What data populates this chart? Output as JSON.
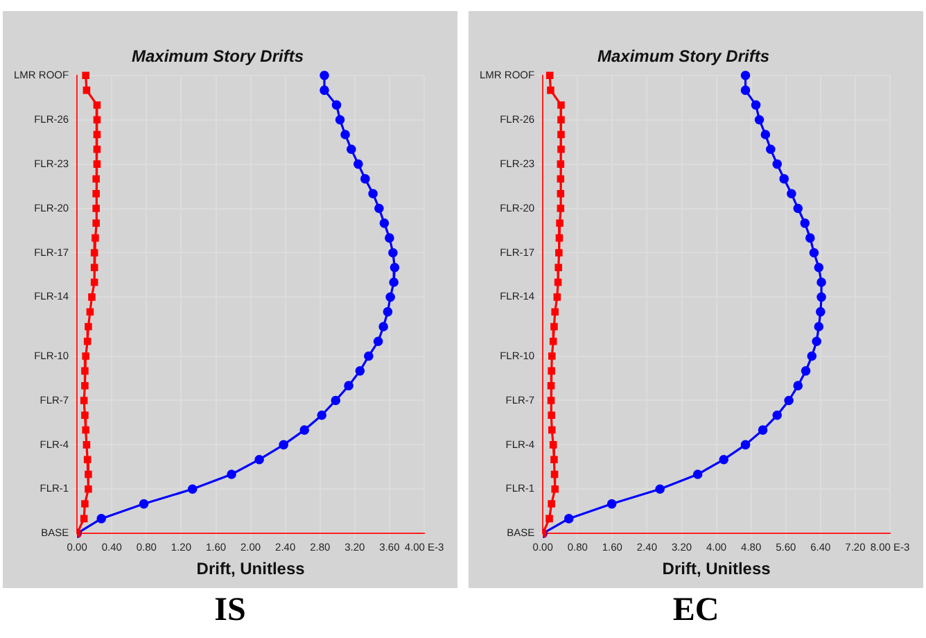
{
  "chart_data": [
    {
      "type": "line",
      "title": "Maximum Story Drifts",
      "xlabel": "Drift, Unitless",
      "annotations": [
        "IS"
      ],
      "orientation": "horizontal",
      "categories": [
        "LMR ROOF",
        null,
        null,
        "FLR-26",
        null,
        null,
        "FLR-23",
        null,
        null,
        "FLR-20",
        null,
        null,
        "FLR-17",
        null,
        null,
        "FLR-14",
        null,
        null,
        null,
        "FLR-10",
        null,
        null,
        "FLR-7",
        null,
        null,
        "FLR-4",
        null,
        null,
        "FLR-1",
        null,
        null,
        "BASE"
      ],
      "xlim": [
        0,
        4
      ],
      "xticks": [
        {
          "value": 0,
          "label": "0.00"
        },
        {
          "value": 0.4,
          "label": "0.40"
        },
        {
          "value": 0.8,
          "label": "0.80"
        },
        {
          "value": 1.2,
          "label": "1.20"
        },
        {
          "value": 1.6,
          "label": "1.60"
        },
        {
          "value": 2.0,
          "label": "2.00"
        },
        {
          "value": 2.4,
          "label": "2.40"
        },
        {
          "value": 2.8,
          "label": "2.80"
        },
        {
          "value": 3.2,
          "label": "3.20"
        },
        {
          "value": 3.6,
          "label": "3.60"
        },
        {
          "value": 4.0,
          "label": "4.00 E-3"
        }
      ],
      "grid": true,
      "series": [
        {
          "color": "#ff0000",
          "marker": "square",
          "values": [
            0.1,
            0.11,
            0.23,
            0.23,
            0.23,
            0.23,
            0.23,
            0.22,
            0.22,
            0.22,
            0.22,
            0.21,
            0.2,
            0.2,
            0.2,
            0.17,
            0.15,
            0.13,
            0.12,
            0.1,
            0.09,
            0.09,
            0.08,
            0.09,
            0.1,
            0.11,
            0.12,
            0.13,
            0.13,
            0.09,
            0.08,
            0
          ]
        },
        {
          "color": "#0000ff",
          "marker": "circle",
          "values": [
            2.85,
            2.85,
            2.99,
            3.03,
            3.09,
            3.16,
            3.24,
            3.32,
            3.41,
            3.48,
            3.54,
            3.6,
            3.64,
            3.66,
            3.65,
            3.61,
            3.58,
            3.53,
            3.47,
            3.36,
            3.26,
            3.13,
            2.98,
            2.82,
            2.62,
            2.38,
            2.1,
            1.78,
            1.33,
            0.77,
            0.28,
            0
          ]
        }
      ]
    },
    {
      "type": "line",
      "title": "Maximum Story Drifts",
      "xlabel": "Drift, Unitless",
      "annotations": [
        "EC"
      ],
      "orientation": "horizontal",
      "categories": [
        "LMR ROOF",
        null,
        null,
        "FLR-26",
        null,
        null,
        "FLR-23",
        null,
        null,
        "FLR-20",
        null,
        null,
        "FLR-17",
        null,
        null,
        "FLR-14",
        null,
        null,
        null,
        "FLR-10",
        null,
        null,
        "FLR-7",
        null,
        null,
        "FLR-4",
        null,
        null,
        "FLR-1",
        null,
        null,
        "BASE"
      ],
      "xlim": [
        0,
        8
      ],
      "xticks": [
        {
          "value": 0,
          "label": "0.00"
        },
        {
          "value": 0.8,
          "label": "0.80"
        },
        {
          "value": 1.6,
          "label": "1.60"
        },
        {
          "value": 2.4,
          "label": "2.40"
        },
        {
          "value": 3.2,
          "label": "3.20"
        },
        {
          "value": 4.0,
          "label": "4.00"
        },
        {
          "value": 4.8,
          "label": "4.80"
        },
        {
          "value": 5.6,
          "label": "5.60"
        },
        {
          "value": 6.4,
          "label": "6.40"
        },
        {
          "value": 7.2,
          "label": "7.20"
        },
        {
          "value": 8.0,
          "label": "8.00 E-3"
        }
      ],
      "grid": true,
      "series": [
        {
          "color": "#ff0000",
          "marker": "square",
          "values": [
            0.16,
            0.18,
            0.42,
            0.42,
            0.42,
            0.42,
            0.41,
            0.41,
            0.41,
            0.41,
            0.39,
            0.38,
            0.37,
            0.36,
            0.35,
            0.33,
            0.28,
            0.26,
            0.24,
            0.21,
            0.2,
            0.19,
            0.19,
            0.2,
            0.21,
            0.24,
            0.26,
            0.27,
            0.28,
            0.2,
            0.15,
            0
          ]
        },
        {
          "color": "#0000ff",
          "marker": "circle",
          "values": [
            4.67,
            4.67,
            4.91,
            4.99,
            5.13,
            5.25,
            5.4,
            5.56,
            5.73,
            5.88,
            6.04,
            6.16,
            6.25,
            6.36,
            6.42,
            6.42,
            6.4,
            6.36,
            6.31,
            6.2,
            6.06,
            5.88,
            5.67,
            5.4,
            5.07,
            4.67,
            4.17,
            3.57,
            2.7,
            1.59,
            0.6,
            0
          ]
        }
      ]
    }
  ]
}
